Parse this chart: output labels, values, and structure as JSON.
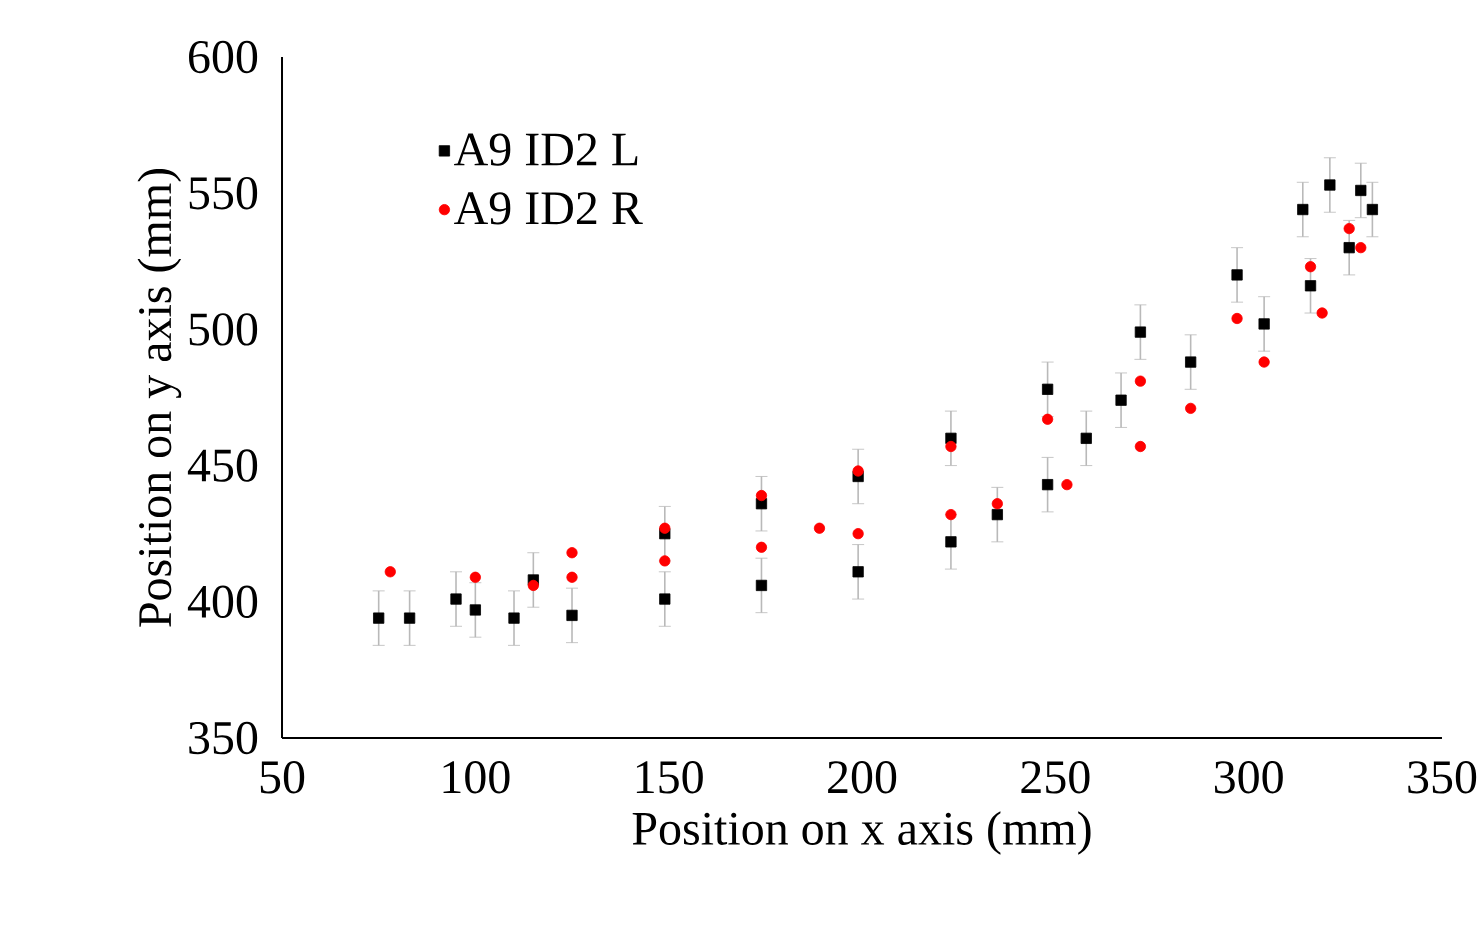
{
  "chart_data": {
    "type": "scatter",
    "xlabel": "Position on x axis (mm)",
    "ylabel": "Position on y axis (mm)",
    "xlim": [
      50,
      350
    ],
    "ylim": [
      350,
      600
    ],
    "xticks": [
      50,
      100,
      150,
      200,
      250,
      300,
      350
    ],
    "yticks": [
      350,
      400,
      450,
      500,
      550,
      600
    ],
    "grid": false,
    "legend": "top left",
    "series": [
      {
        "name": "A9 ID2 L",
        "color": "#000000",
        "marker": "square",
        "x": [
          75,
          95,
          115,
          149,
          174,
          199,
          223,
          248,
          272,
          297,
          314,
          321,
          329,
          332,
          326,
          316,
          304,
          285,
          267,
          258,
          248,
          235,
          223,
          199,
          174,
          149,
          125,
          110,
          100,
          83
        ],
        "values": [
          394,
          401,
          408,
          425,
          436,
          446,
          460,
          478,
          499,
          520,
          544,
          553,
          551,
          544,
          530,
          516,
          502,
          488,
          474,
          460,
          443,
          432,
          422,
          411,
          406,
          401,
          395,
          394,
          397,
          394
        ],
        "errors": [
          10,
          10,
          10,
          10,
          10,
          10,
          10,
          10,
          10,
          10,
          10,
          10,
          10,
          10,
          10,
          10,
          10,
          10,
          10,
          10,
          10,
          10,
          10,
          10,
          10,
          10,
          10,
          10,
          10,
          10
        ]
      },
      {
        "name": "A9 ID2 R",
        "color": "#ff0000",
        "marker": "circle",
        "x": [
          78,
          100,
          125,
          149,
          174,
          199,
          223,
          248,
          272,
          297,
          316,
          326,
          329,
          319,
          304,
          285,
          272,
          253,
          235,
          223,
          199,
          189,
          174,
          149,
          125,
          115
        ],
        "values": [
          411,
          409,
          418,
          427,
          439,
          448,
          457,
          467,
          481,
          504,
          523,
          537,
          530,
          506,
          488,
          471,
          457,
          443,
          436,
          432,
          425,
          427,
          420,
          415,
          409,
          406
        ]
      }
    ]
  }
}
